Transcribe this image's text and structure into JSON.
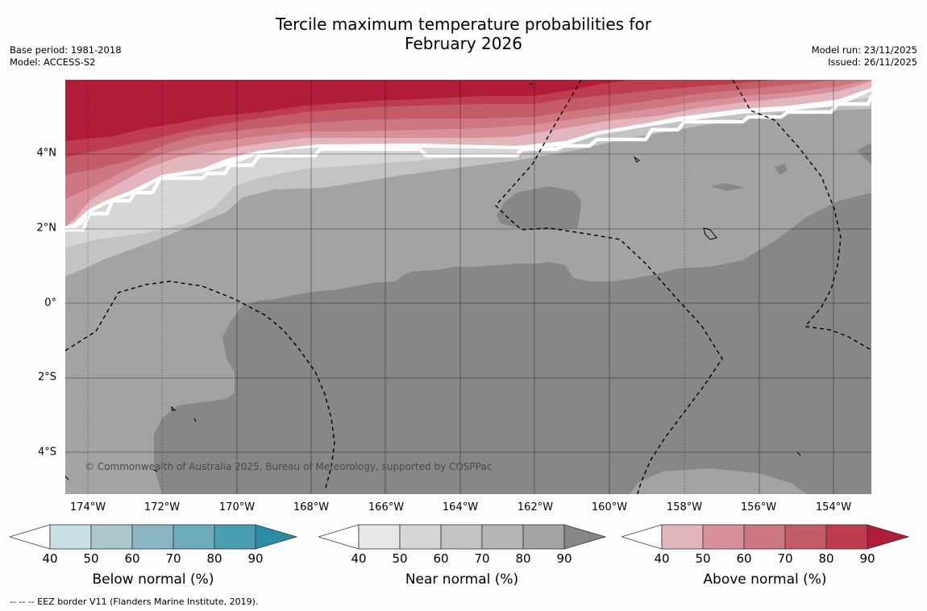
{
  "header": {
    "title_line1": "Tercile maximum temperature probabilities for",
    "title_line2": "February 2026",
    "base_period": "Base period: 1981-2018",
    "model": "Model: ACCESS-S2",
    "model_run": "Model run: 23/11/2025",
    "issued": "Issued: 26/11/2025"
  },
  "map": {
    "lat_labels": [
      "4°N",
      "2°N",
      "0°",
      "2°S",
      "4°S"
    ],
    "lon_labels": [
      "174°W",
      "172°W",
      "170°W",
      "168°W",
      "166°W",
      "164°W",
      "162°W",
      "160°W",
      "158°W",
      "156°W",
      "154°W"
    ],
    "copyright": "© Commonwealth of Australia 2025, Bureau of Meteorology, supported by COSPPac",
    "colors": {
      "near_normal": [
        "#e8e8e8",
        "#d6d6d6",
        "#c3c3c3",
        "#b5b5b5",
        "#a3a3a3",
        "#878787"
      ],
      "above_normal": [
        "#e3b6bd",
        "#d8909a",
        "#cd7781",
        "#c35c67",
        "#bd3d4f",
        "#b11c38"
      ],
      "below_normal": [
        "#c8e1e8",
        "#a9c7cc",
        "#8ab6c3",
        "#6dacba",
        "#4a9eb1",
        "#2c8ca3"
      ]
    }
  },
  "legends": [
    {
      "title": "Below normal (%)",
      "ticks": [
        "40",
        "50",
        "60",
        "70",
        "80",
        "90"
      ]
    },
    {
      "title": "Near normal (%)",
      "ticks": [
        "40",
        "50",
        "60",
        "70",
        "80",
        "90"
      ]
    },
    {
      "title": "Above normal (%)",
      "ticks": [
        "40",
        "50",
        "60",
        "70",
        "80",
        "90"
      ]
    }
  ],
  "footnote": "--  --  -- EEZ border V11 (Flanders Marine Institute, 2019)."
}
